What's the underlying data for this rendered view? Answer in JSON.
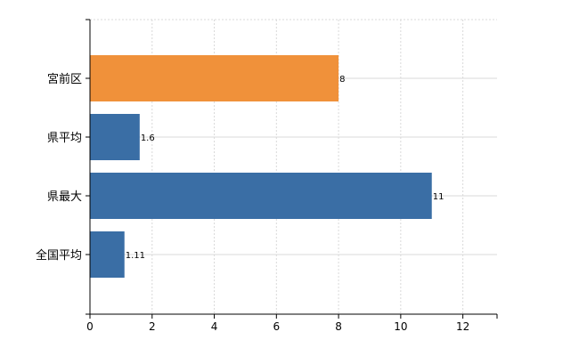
{
  "chart_data": {
    "type": "bar",
    "orientation": "horizontal",
    "categories": [
      "宮前区",
      "県平均",
      "県最大",
      "全国平均"
    ],
    "values": [
      8,
      1.6,
      11,
      1.11
    ],
    "value_labels": [
      "8",
      "1.6",
      "11",
      "1.11"
    ],
    "bar_colors": [
      "#f0913a",
      "#3a6ea5",
      "#3a6ea5",
      "#3a6ea5"
    ],
    "xlim": [
      0,
      13.1
    ],
    "xticks": [
      0,
      2,
      4,
      6,
      8,
      10,
      12
    ],
    "grid": true,
    "legend": "none",
    "title": "",
    "xlabel": "",
    "ylabel": ""
  },
  "colors": {
    "highlight": "#f0913a",
    "default": "#3a6ea5",
    "grid": "#d9d9d9"
  }
}
